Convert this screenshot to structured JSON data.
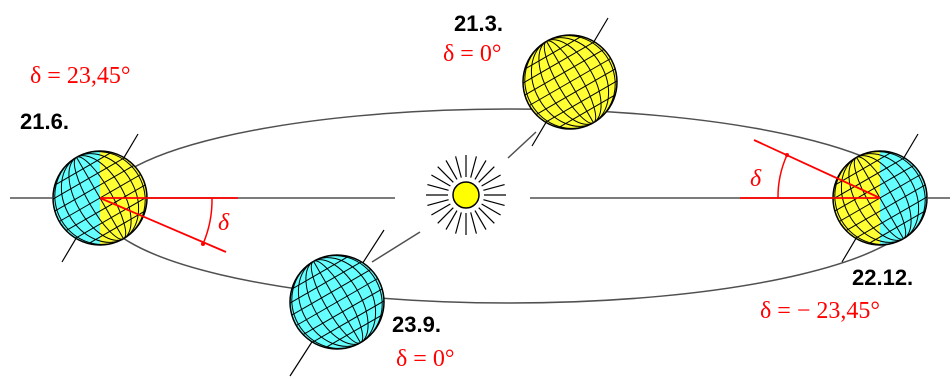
{
  "colors": {
    "day": "#ffff33",
    "night": "#66ffff",
    "grid": "#000000",
    "orbit": "#505050",
    "axis": "#000000",
    "declination": "#ff0000",
    "sun": "#ffff00"
  },
  "positions": {
    "summer": {
      "date": "21.6.",
      "declination": "δ = 23,45°"
    },
    "spring": {
      "date": "21.3.",
      "declination": "δ = 0°"
    },
    "winter": {
      "date": "22.12.",
      "declination": "δ = − 23,45°"
    },
    "autumn": {
      "date": "23.9.",
      "declination": "δ = 0°"
    }
  },
  "angle_symbol": "δ"
}
